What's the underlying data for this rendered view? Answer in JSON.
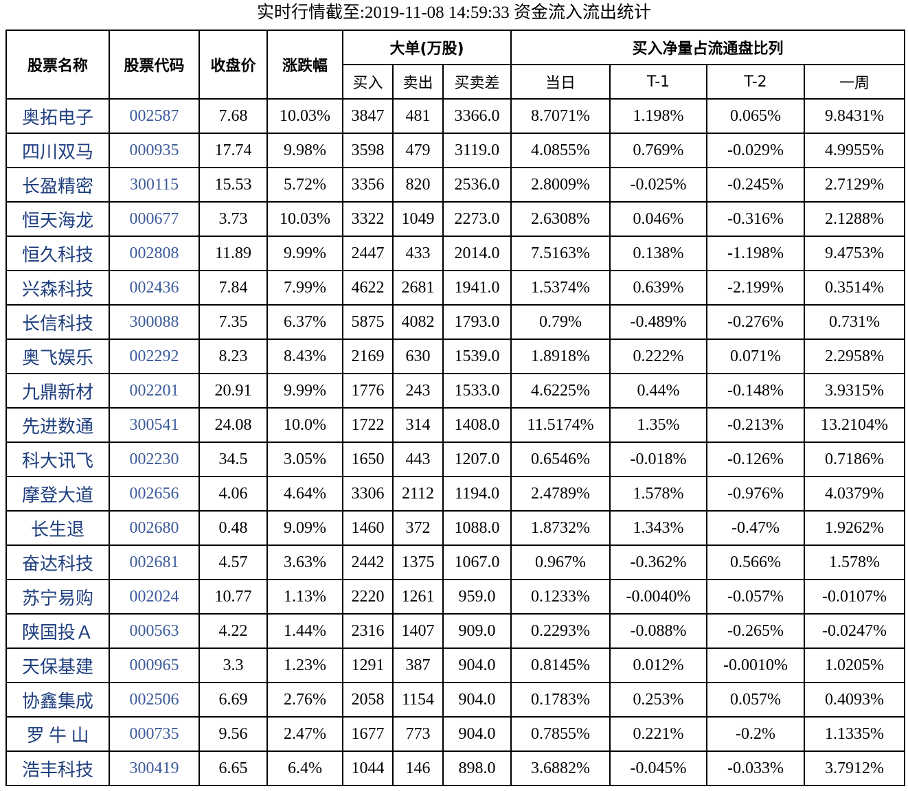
{
  "title": "实时行情截至:2019-11-08 14:59:33 资金流入流出统计",
  "table": {
    "header_top": [
      "股票名称",
      "股票代码",
      "收盘价",
      "涨跌幅",
      "大单(万股)",
      "买入净量占流通盘比列"
    ],
    "header_sub": [
      "买入",
      "卖出",
      "买卖差",
      "当日",
      "T-1",
      "T-2",
      "一周"
    ],
    "rows": [
      [
        "奥拓电子",
        "002587",
        "7.68",
        "10.03%",
        "3847",
        "481",
        "3366.0",
        "8.7071%",
        "1.198%",
        "0.065%",
        "9.8431%"
      ],
      [
        "四川双马",
        "000935",
        "17.74",
        "9.98%",
        "3598",
        "479",
        "3119.0",
        "4.0855%",
        "0.769%",
        "-0.029%",
        "4.9955%"
      ],
      [
        "长盈精密",
        "300115",
        "15.53",
        "5.72%",
        "3356",
        "820",
        "2536.0",
        "2.8009%",
        "-0.025%",
        "-0.245%",
        "2.7129%"
      ],
      [
        "恒天海龙",
        "000677",
        "3.73",
        "10.03%",
        "3322",
        "1049",
        "2273.0",
        "2.6308%",
        "0.046%",
        "-0.316%",
        "2.1288%"
      ],
      [
        "恒久科技",
        "002808",
        "11.89",
        "9.99%",
        "2447",
        "433",
        "2014.0",
        "7.5163%",
        "0.138%",
        "-1.198%",
        "9.4753%"
      ],
      [
        "兴森科技",
        "002436",
        "7.84",
        "7.99%",
        "4622",
        "2681",
        "1941.0",
        "1.5374%",
        "0.639%",
        "-2.199%",
        "0.3514%"
      ],
      [
        "长信科技",
        "300088",
        "7.35",
        "6.37%",
        "5875",
        "4082",
        "1793.0",
        "0.79%",
        "-0.489%",
        "-0.276%",
        "0.731%"
      ],
      [
        "奥飞娱乐",
        "002292",
        "8.23",
        "8.43%",
        "2169",
        "630",
        "1539.0",
        "1.8918%",
        "0.222%",
        "0.071%",
        "2.2958%"
      ],
      [
        "九鼎新材",
        "002201",
        "20.91",
        "9.99%",
        "1776",
        "243",
        "1533.0",
        "4.6225%",
        "0.44%",
        "-0.148%",
        "3.9315%"
      ],
      [
        "先进数通",
        "300541",
        "24.08",
        "10.0%",
        "1722",
        "314",
        "1408.0",
        "11.5174%",
        "1.35%",
        "-0.213%",
        "13.2104%"
      ],
      [
        "科大讯飞",
        "002230",
        "34.5",
        "3.05%",
        "1650",
        "443",
        "1207.0",
        "0.6546%",
        "-0.018%",
        "-0.126%",
        "0.7186%"
      ],
      [
        "摩登大道",
        "002656",
        "4.06",
        "4.64%",
        "3306",
        "2112",
        "1194.0",
        "2.4789%",
        "1.578%",
        "-0.976%",
        "4.0379%"
      ],
      [
        "长生退",
        "002680",
        "0.48",
        "9.09%",
        "1460",
        "372",
        "1088.0",
        "1.8732%",
        "1.343%",
        "-0.47%",
        "1.9262%"
      ],
      [
        "奋达科技",
        "002681",
        "4.57",
        "3.63%",
        "2442",
        "1375",
        "1067.0",
        "0.967%",
        "-0.362%",
        "0.566%",
        "1.578%"
      ],
      [
        "苏宁易购",
        "002024",
        "10.77",
        "1.13%",
        "2220",
        "1261",
        "959.0",
        "0.1233%",
        "-0.0040%",
        "-0.057%",
        "-0.0107%"
      ],
      [
        "陕国投Ａ",
        "000563",
        "4.22",
        "1.44%",
        "2316",
        "1407",
        "909.0",
        "0.2293%",
        "-0.088%",
        "-0.265%",
        "-0.0247%"
      ],
      [
        "天保基建",
        "000965",
        "3.3",
        "1.23%",
        "1291",
        "387",
        "904.0",
        "0.8145%",
        "0.012%",
        "-0.0010%",
        "1.0205%"
      ],
      [
        "协鑫集成",
        "002506",
        "6.69",
        "2.76%",
        "2058",
        "1154",
        "904.0",
        "0.1783%",
        "0.253%",
        "0.057%",
        "0.4093%"
      ],
      [
        "罗 牛 山",
        "000735",
        "9.56",
        "2.47%",
        "1677",
        "773",
        "904.0",
        "0.7855%",
        "0.221%",
        "-0.2%",
        "1.1335%"
      ],
      [
        "浩丰科技",
        "300419",
        "6.65",
        "6.4%",
        "1044",
        "146",
        "898.0",
        "3.6882%",
        "-0.045%",
        "-0.033%",
        "3.7912%"
      ]
    ]
  }
}
